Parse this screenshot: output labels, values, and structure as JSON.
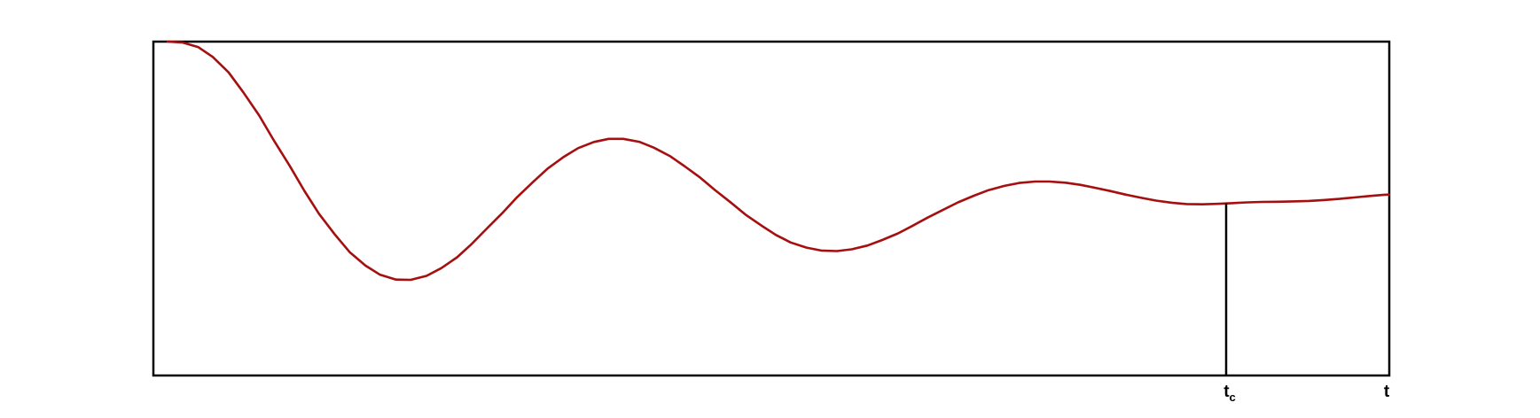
{
  "chart_data": {
    "type": "line",
    "title": "",
    "xlabel": "",
    "ylabel": "",
    "grid": false,
    "legend": "none",
    "xlim": [
      0,
      1
    ],
    "ylim": [
      -1.05,
      1.0
    ],
    "annotations": {
      "tc_label": "t",
      "tc_subscript": "c",
      "tc_x": 0.868,
      "t_label": "t",
      "t_x": 1.0
    },
    "series": [
      {
        "color": "#a50f0f",
        "x": [
          0.0,
          0.012,
          0.025,
          0.037,
          0.05,
          0.062,
          0.075,
          0.087,
          0.1,
          0.112,
          0.124,
          0.137,
          0.149,
          0.162,
          0.174,
          0.187,
          0.199,
          0.212,
          0.224,
          0.237,
          0.249,
          0.261,
          0.274,
          0.286,
          0.299,
          0.311,
          0.324,
          0.336,
          0.349,
          0.361,
          0.373,
          0.386,
          0.398,
          0.411,
          0.423,
          0.436,
          0.448,
          0.461,
          0.473,
          0.486,
          0.498,
          0.51,
          0.523,
          0.535,
          0.548,
          0.56,
          0.573,
          0.585,
          0.598,
          0.61,
          0.622,
          0.635,
          0.647,
          0.66,
          0.672,
          0.685,
          0.697,
          0.71,
          0.722,
          0.735,
          0.747,
          0.759,
          0.772,
          0.784,
          0.797,
          0.809,
          0.822,
          0.834,
          0.847,
          0.859,
          0.871,
          0.884,
          0.896,
          0.909,
          0.921,
          0.934,
          0.946,
          0.959,
          0.971,
          0.984,
          0.996,
          1.0
        ],
        "y": [
          1.0,
          0.995,
          0.967,
          0.906,
          0.811,
          0.689,
          0.546,
          0.393,
          0.237,
          0.084,
          -0.058,
          -0.185,
          -0.292,
          -0.375,
          -0.432,
          -0.461,
          -0.463,
          -0.438,
          -0.391,
          -0.324,
          -0.242,
          -0.15,
          -0.053,
          0.044,
          0.137,
          0.22,
          0.291,
          0.346,
          0.384,
          0.403,
          0.403,
          0.385,
          0.349,
          0.298,
          0.236,
          0.165,
          0.089,
          0.012,
          -0.062,
          -0.129,
          -0.187,
          -0.233,
          -0.265,
          -0.283,
          -0.286,
          -0.275,
          -0.252,
          -0.218,
          -0.177,
          -0.13,
          -0.081,
          -0.032,
          0.013,
          0.054,
          0.088,
          0.114,
          0.132,
          0.141,
          0.141,
          0.134,
          0.121,
          0.103,
          0.082,
          0.061,
          0.041,
          0.024,
          0.011,
          0.003,
          0.001,
          0.004,
          0.008,
          0.013,
          0.016,
          0.017,
          0.019,
          0.022,
          0.027,
          0.034,
          0.043,
          0.052,
          0.06,
          0.061
        ]
      }
    ]
  }
}
